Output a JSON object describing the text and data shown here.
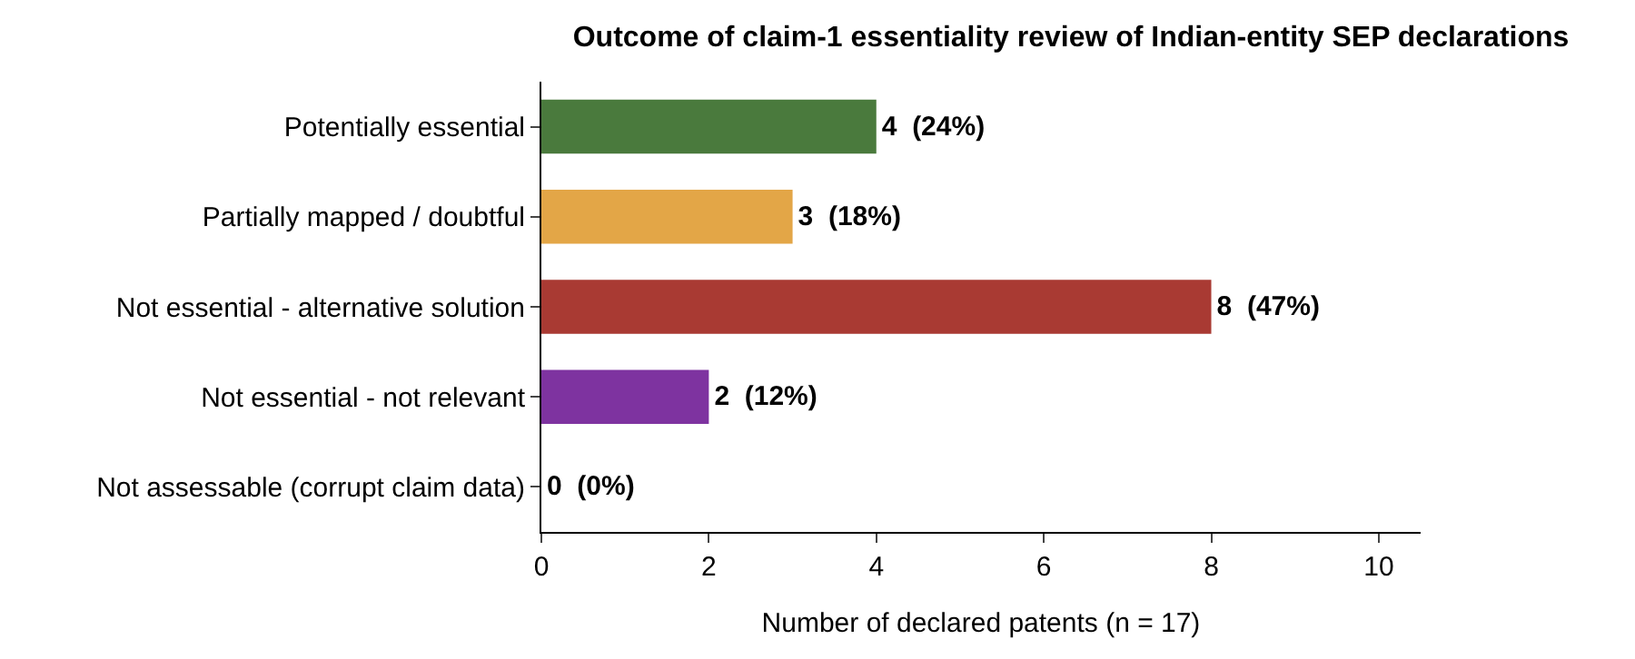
{
  "chart_data": {
    "type": "bar",
    "orientation": "horizontal",
    "title": "Outcome of claim-1 essentiality review of Indian-entity SEP declarations",
    "xlabel": "Number of declared patents (n = 17)",
    "categories": [
      "Potentially essential",
      "Partially mapped / doubtful",
      "Not essential - alternative solution",
      "Not essential - not relevant",
      "Not assessable (corrupt claim data)"
    ],
    "values": [
      4,
      3,
      8,
      2,
      0
    ],
    "colors": [
      "#4a7a3d",
      "#e3a647",
      "#a93a33",
      "#7e33a0",
      "#7f7f7f"
    ],
    "value_labels": [
      "4  (24%)",
      "3  (18%)",
      "8  (47%)",
      "2  (12%)",
      "0  (0%)"
    ],
    "xlim": [
      0,
      10.5
    ],
    "xticks": [
      0,
      2,
      4,
      6,
      8,
      10
    ],
    "grid": false
  }
}
